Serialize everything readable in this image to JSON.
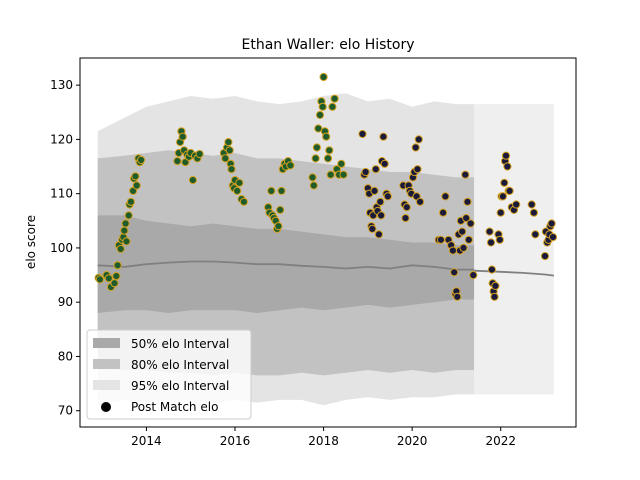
{
  "chart_data": {
    "type": "scatter",
    "title": "Ethan Waller: elo History",
    "xlabel": "",
    "ylabel": "elo score",
    "xlim": [
      2012.5,
      2023.7
    ],
    "ylim": [
      67,
      135
    ],
    "xticks": [
      2014,
      2016,
      2018,
      2020,
      2022
    ],
    "yticks": [
      70,
      80,
      90,
      100,
      110,
      120,
      130
    ],
    "grid": false,
    "legend": {
      "placement": "lower-left",
      "entries": [
        {
          "label": "50% elo Interval",
          "color": "#a9a9a9"
        },
        {
          "label": "80% elo Interval",
          "color": "#c2c2c2"
        },
        {
          "label": "95% elo Interval",
          "color": "#e4e4e4"
        },
        {
          "label": "Post Match elo",
          "color": "#000000"
        }
      ]
    },
    "colors": {
      "band50": "#a9a9a9",
      "band80": "#c2c2c2",
      "band95": "#e4e4e4",
      "median_line": "#808080",
      "marker_fill": "#1a1a3a",
      "marker_edge": "#d4a020",
      "marker_fill_early": "#1f5c2a"
    },
    "bands": {
      "x": [
        2012.9,
        2013.5,
        2014.0,
        2014.5,
        2015.0,
        2015.5,
        2016.0,
        2016.5,
        2017.0,
        2017.5,
        2018.0,
        2018.5,
        2019.0,
        2019.5,
        2020.0,
        2020.5,
        2021.0,
        2021.4
      ],
      "p95_upper": [
        121.5,
        124.0,
        126.0,
        127.0,
        128.0,
        127.5,
        128.0,
        127.0,
        126.5,
        127.0,
        128.0,
        128.5,
        127.0,
        127.5,
        126.0,
        127.0,
        126.5,
        126.5
      ],
      "p80_upper": [
        116.5,
        117.0,
        117.5,
        118.0,
        117.5,
        117.0,
        117.5,
        116.5,
        116.5,
        116.0,
        115.5,
        115.0,
        114.5,
        114.0,
        114.0,
        113.5,
        113.0,
        113.0
      ],
      "p50_upper": [
        106.0,
        106.0,
        105.0,
        104.5,
        104.0,
        104.5,
        104.0,
        103.5,
        103.5,
        103.0,
        102.5,
        102.0,
        102.0,
        101.5,
        101.0,
        101.0,
        100.5,
        100.5
      ],
      "median": [
        96.8,
        96.5,
        97.0,
        97.3,
        97.5,
        97.5,
        97.3,
        97.0,
        97.0,
        96.7,
        96.5,
        96.2,
        96.5,
        96.2,
        96.8,
        96.5,
        96.0,
        96.0
      ],
      "p50_lower": [
        88.0,
        88.5,
        88.5,
        88.0,
        88.5,
        88.5,
        88.5,
        88.0,
        88.5,
        89.0,
        88.5,
        89.0,
        89.5,
        89.0,
        89.5,
        90.0,
        90.5,
        90.5
      ],
      "p80_lower": [
        78.0,
        77.5,
        77.5,
        77.0,
        77.0,
        76.5,
        77.0,
        76.5,
        76.5,
        77.0,
        76.5,
        77.0,
        77.5,
        77.0,
        77.5,
        77.0,
        77.5,
        77.5
      ],
      "p95_lower": [
        71.0,
        72.0,
        71.5,
        72.0,
        72.0,
        71.5,
        72.0,
        71.5,
        72.0,
        72.0,
        71.0,
        72.0,
        72.5,
        72.0,
        72.5,
        72.5,
        73.0,
        73.0
      ]
    },
    "forecast_median": {
      "x": [
        2021.4,
        2022.0,
        2022.5,
        2023.0,
        2023.2
      ],
      "y": [
        95.8,
        95.6,
        95.4,
        95.1,
        94.9
      ]
    },
    "points": [
      [
        2012.92,
        94.5
      ],
      [
        2012.95,
        94.2
      ],
      [
        2013.1,
        95.0
      ],
      [
        2013.15,
        94.4
      ],
      [
        2013.2,
        92.8
      ],
      [
        2013.28,
        93.5
      ],
      [
        2013.32,
        94.8
      ],
      [
        2013.35,
        96.8
      ],
      [
        2013.38,
        100.5
      ],
      [
        2013.42,
        99.8
      ],
      [
        2013.45,
        101.5
      ],
      [
        2013.48,
        102.0
      ],
      [
        2013.5,
        103.2
      ],
      [
        2013.53,
        104.5
      ],
      [
        2013.55,
        101.2
      ],
      [
        2013.6,
        106.0
      ],
      [
        2013.62,
        108.0
      ],
      [
        2013.65,
        108.5
      ],
      [
        2013.7,
        110.5
      ],
      [
        2013.72,
        112.8
      ],
      [
        2013.75,
        113.2
      ],
      [
        2013.78,
        111.5
      ],
      [
        2013.82,
        116.5
      ],
      [
        2013.85,
        115.8
      ],
      [
        2013.88,
        116.2
      ],
      [
        2014.7,
        116.0
      ],
      [
        2014.73,
        117.5
      ],
      [
        2014.76,
        119.5
      ],
      [
        2014.79,
        121.5
      ],
      [
        2014.82,
        120.5
      ],
      [
        2014.85,
        118.0
      ],
      [
        2014.88,
        115.8
      ],
      [
        2014.92,
        117.2
      ],
      [
        2014.96,
        116.8
      ],
      [
        2015.0,
        117.5
      ],
      [
        2015.05,
        112.5
      ],
      [
        2015.1,
        117.0
      ],
      [
        2015.15,
        116.5
      ],
      [
        2015.2,
        117.3
      ],
      [
        2015.75,
        117.5
      ],
      [
        2015.78,
        116.5
      ],
      [
        2015.82,
        118.5
      ],
      [
        2015.85,
        119.5
      ],
      [
        2015.88,
        118.0
      ],
      [
        2015.9,
        115.5
      ],
      [
        2015.92,
        114.5
      ],
      [
        2015.95,
        111.5
      ],
      [
        2015.98,
        111.0
      ],
      [
        2016.0,
        112.5
      ],
      [
        2016.05,
        110.5
      ],
      [
        2016.1,
        112.0
      ],
      [
        2016.15,
        109.0
      ],
      [
        2016.2,
        108.5
      ],
      [
        2016.75,
        107.5
      ],
      [
        2016.78,
        106.5
      ],
      [
        2016.82,
        110.5
      ],
      [
        2016.85,
        106.0
      ],
      [
        2016.88,
        105.5
      ],
      [
        2016.92,
        105.0
      ],
      [
        2016.95,
        103.5
      ],
      [
        2016.98,
        104.0
      ],
      [
        2017.02,
        107.0
      ],
      [
        2017.05,
        110.5
      ],
      [
        2017.08,
        114.5
      ],
      [
        2017.12,
        115.5
      ],
      [
        2017.15,
        115.0
      ],
      [
        2017.2,
        116.0
      ],
      [
        2017.25,
        115.2
      ],
      [
        2017.75,
        113.0
      ],
      [
        2017.78,
        111.5
      ],
      [
        2017.82,
        116.5
      ],
      [
        2017.85,
        118.5
      ],
      [
        2017.88,
        122.0
      ],
      [
        2017.92,
        124.5
      ],
      [
        2017.95,
        127.0
      ],
      [
        2017.98,
        126.0
      ],
      [
        2018.0,
        131.5
      ],
      [
        2018.03,
        121.5
      ],
      [
        2018.06,
        120.5
      ],
      [
        2018.1,
        116.5
      ],
      [
        2018.13,
        118.0
      ],
      [
        2018.16,
        113.5
      ],
      [
        2018.2,
        126.0
      ],
      [
        2018.25,
        127.5
      ],
      [
        2018.3,
        114.5
      ],
      [
        2018.35,
        113.5
      ],
      [
        2018.4,
        115.5
      ],
      [
        2018.45,
        113.5
      ],
      [
        2018.88,
        121.0
      ],
      [
        2018.92,
        113.5
      ],
      [
        2018.95,
        114.0
      ],
      [
        2019.0,
        111.0
      ],
      [
        2019.03,
        110.0
      ],
      [
        2019.05,
        106.5
      ],
      [
        2019.08,
        104.0
      ],
      [
        2019.1,
        103.5
      ],
      [
        2019.12,
        106.0
      ],
      [
        2019.15,
        110.5
      ],
      [
        2019.18,
        114.5
      ],
      [
        2019.2,
        107.5
      ],
      [
        2019.22,
        106.8
      ],
      [
        2019.25,
        102.5
      ],
      [
        2019.28,
        108.5
      ],
      [
        2019.3,
        106.0
      ],
      [
        2019.32,
        116.0
      ],
      [
        2019.35,
        120.5
      ],
      [
        2019.38,
        115.5
      ],
      [
        2019.42,
        110.0
      ],
      [
        2019.45,
        109.5
      ],
      [
        2019.8,
        111.5
      ],
      [
        2019.83,
        108.0
      ],
      [
        2019.85,
        105.5
      ],
      [
        2019.88,
        107.5
      ],
      [
        2019.92,
        111.5
      ],
      [
        2019.95,
        110.5
      ],
      [
        2019.98,
        110.0
      ],
      [
        2020.02,
        113.0
      ],
      [
        2020.05,
        114.0
      ],
      [
        2020.08,
        118.5
      ],
      [
        2020.1,
        109.5
      ],
      [
        2020.12,
        114.5
      ],
      [
        2020.15,
        120.0
      ],
      [
        2020.18,
        108.5
      ],
      [
        2020.6,
        101.5
      ],
      [
        2020.65,
        101.5
      ],
      [
        2020.7,
        106.5
      ],
      [
        2020.75,
        109.5
      ],
      [
        2020.82,
        101.5
      ],
      [
        2020.88,
        100.5
      ],
      [
        2020.92,
        99.5
      ],
      [
        2020.95,
        95.5
      ],
      [
        2020.98,
        91.5
      ],
      [
        2021.0,
        92.0
      ],
      [
        2021.02,
        91.0
      ],
      [
        2021.05,
        102.5
      ],
      [
        2021.08,
        99.5
      ],
      [
        2021.1,
        105.0
      ],
      [
        2021.13,
        103.0
      ],
      [
        2021.16,
        100.0
      ],
      [
        2021.2,
        113.5
      ],
      [
        2021.22,
        105.5
      ],
      [
        2021.25,
        108.5
      ],
      [
        2021.28,
        101.5
      ],
      [
        2021.32,
        104.5
      ],
      [
        2021.38,
        95.0
      ],
      [
        2021.75,
        103.0
      ],
      [
        2021.78,
        101.0
      ],
      [
        2021.8,
        96.0
      ],
      [
        2021.82,
        93.5
      ],
      [
        2021.84,
        92.0
      ],
      [
        2021.86,
        91.0
      ],
      [
        2021.88,
        93.0
      ],
      [
        2021.95,
        102.5
      ],
      [
        2021.98,
        101.5
      ],
      [
        2022.0,
        106.5
      ],
      [
        2022.02,
        109.5
      ],
      [
        2022.05,
        109.5
      ],
      [
        2022.08,
        112.0
      ],
      [
        2022.1,
        116.0
      ],
      [
        2022.12,
        117.0
      ],
      [
        2022.15,
        115.0
      ],
      [
        2022.18,
        110.5
      ],
      [
        2022.2,
        110.5
      ],
      [
        2022.25,
        107.5
      ],
      [
        2022.3,
        107.0
      ],
      [
        2022.35,
        108.0
      ],
      [
        2022.7,
        108.0
      ],
      [
        2022.75,
        106.5
      ],
      [
        2022.78,
        102.5
      ],
      [
        2023.0,
        98.5
      ],
      [
        2023.02,
        103.0
      ],
      [
        2023.05,
        101.0
      ],
      [
        2023.08,
        101.5
      ],
      [
        2023.1,
        102.5
      ],
      [
        2023.12,
        104.0
      ],
      [
        2023.15,
        104.5
      ],
      [
        2023.18,
        102.0
      ]
    ]
  }
}
